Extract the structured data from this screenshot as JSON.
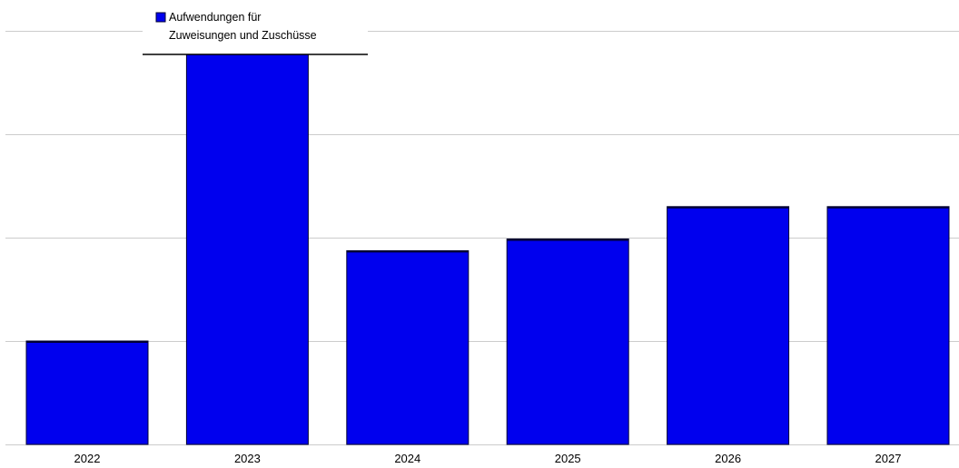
{
  "chart_data": {
    "type": "bar",
    "categories": [
      "2022",
      "2023",
      "2024",
      "2025",
      "2026",
      "2027"
    ],
    "series": [
      {
        "name": "Aufwendungen für Zuweisungen und Zuschüsse",
        "legend_lines": [
          "Aufwendungen für",
          "Zuweisungen und Zuschüsse"
        ],
        "color": "#0000ee",
        "values": [
          150,
          570,
          281,
          298,
          345,
          345
        ]
      }
    ],
    "ylim": [
      0,
      600
    ],
    "grid": true,
    "legend": "top-left",
    "colors": {
      "bar": "#0000ee",
      "bar_edge": "#000033",
      "grid": "#cccccc",
      "legend_underline": "#000000"
    }
  }
}
